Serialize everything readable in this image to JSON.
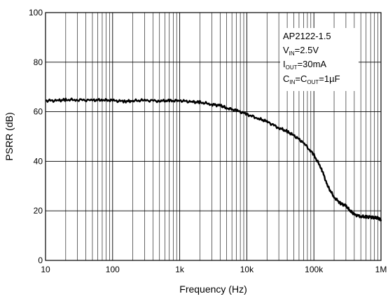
{
  "chart_data": {
    "type": "line",
    "title": "",
    "xlabel": "Frequency (Hz)",
    "ylabel": "PSRR (dB)",
    "x_scale": "log",
    "xlim": [
      10,
      1000000
    ],
    "ylim": [
      0,
      100
    ],
    "x_ticks": [
      {
        "value": 10,
        "label": "10"
      },
      {
        "value": 100,
        "label": "100"
      },
      {
        "value": 1000,
        "label": "1k"
      },
      {
        "value": 10000,
        "label": "10k"
      },
      {
        "value": 100000,
        "label": "100k"
      },
      {
        "value": 1000000,
        "label": "1M"
      }
    ],
    "y_ticks": [
      {
        "value": 0,
        "label": "0"
      },
      {
        "value": 20,
        "label": "20"
      },
      {
        "value": 40,
        "label": "40"
      },
      {
        "value": 60,
        "label": "60"
      },
      {
        "value": 80,
        "label": "80"
      },
      {
        "value": 100,
        "label": "100"
      }
    ],
    "grid": true,
    "legend": "none",
    "annotation": {
      "part": "AP2122-1.5",
      "vin": {
        "sym": "V",
        "sub": "IN",
        "val": "=2.5V"
      },
      "iout": {
        "sym": "I",
        "sub": "OUT",
        "val": "=30mA"
      },
      "caps": {
        "sym1": "C",
        "sub1": "IN",
        "mid": "=C",
        "sub2": "OUT",
        "val": "=1µF"
      },
      "position": "top-right"
    },
    "series": [
      {
        "color": "#000000",
        "x": [
          10,
          15,
          20,
          30,
          50,
          70,
          100,
          150,
          200,
          300,
          500,
          700,
          1000,
          1500,
          2000,
          3000,
          4000,
          5000,
          7000,
          10000,
          15000,
          20000,
          30000,
          40000,
          50000,
          70000,
          100000,
          130000,
          160000,
          200000,
          250000,
          300000,
          350000,
          400000,
          500000,
          600000,
          700000,
          800000,
          900000,
          1000000
        ],
        "y": [
          64.5,
          64.5,
          64.8,
          64.8,
          64.6,
          64.8,
          64.5,
          64.2,
          64.4,
          64.6,
          64.4,
          64.4,
          64.5,
          64.0,
          63.8,
          63.0,
          62.5,
          61.5,
          60.5,
          59.0,
          57.2,
          56.0,
          53.5,
          52.0,
          50.5,
          47.5,
          42.5,
          37.0,
          30.0,
          25.5,
          23.0,
          22.0,
          20.0,
          18.5,
          17.8,
          17.5,
          17.5,
          17.3,
          17.0,
          16.5
        ]
      }
    ]
  }
}
